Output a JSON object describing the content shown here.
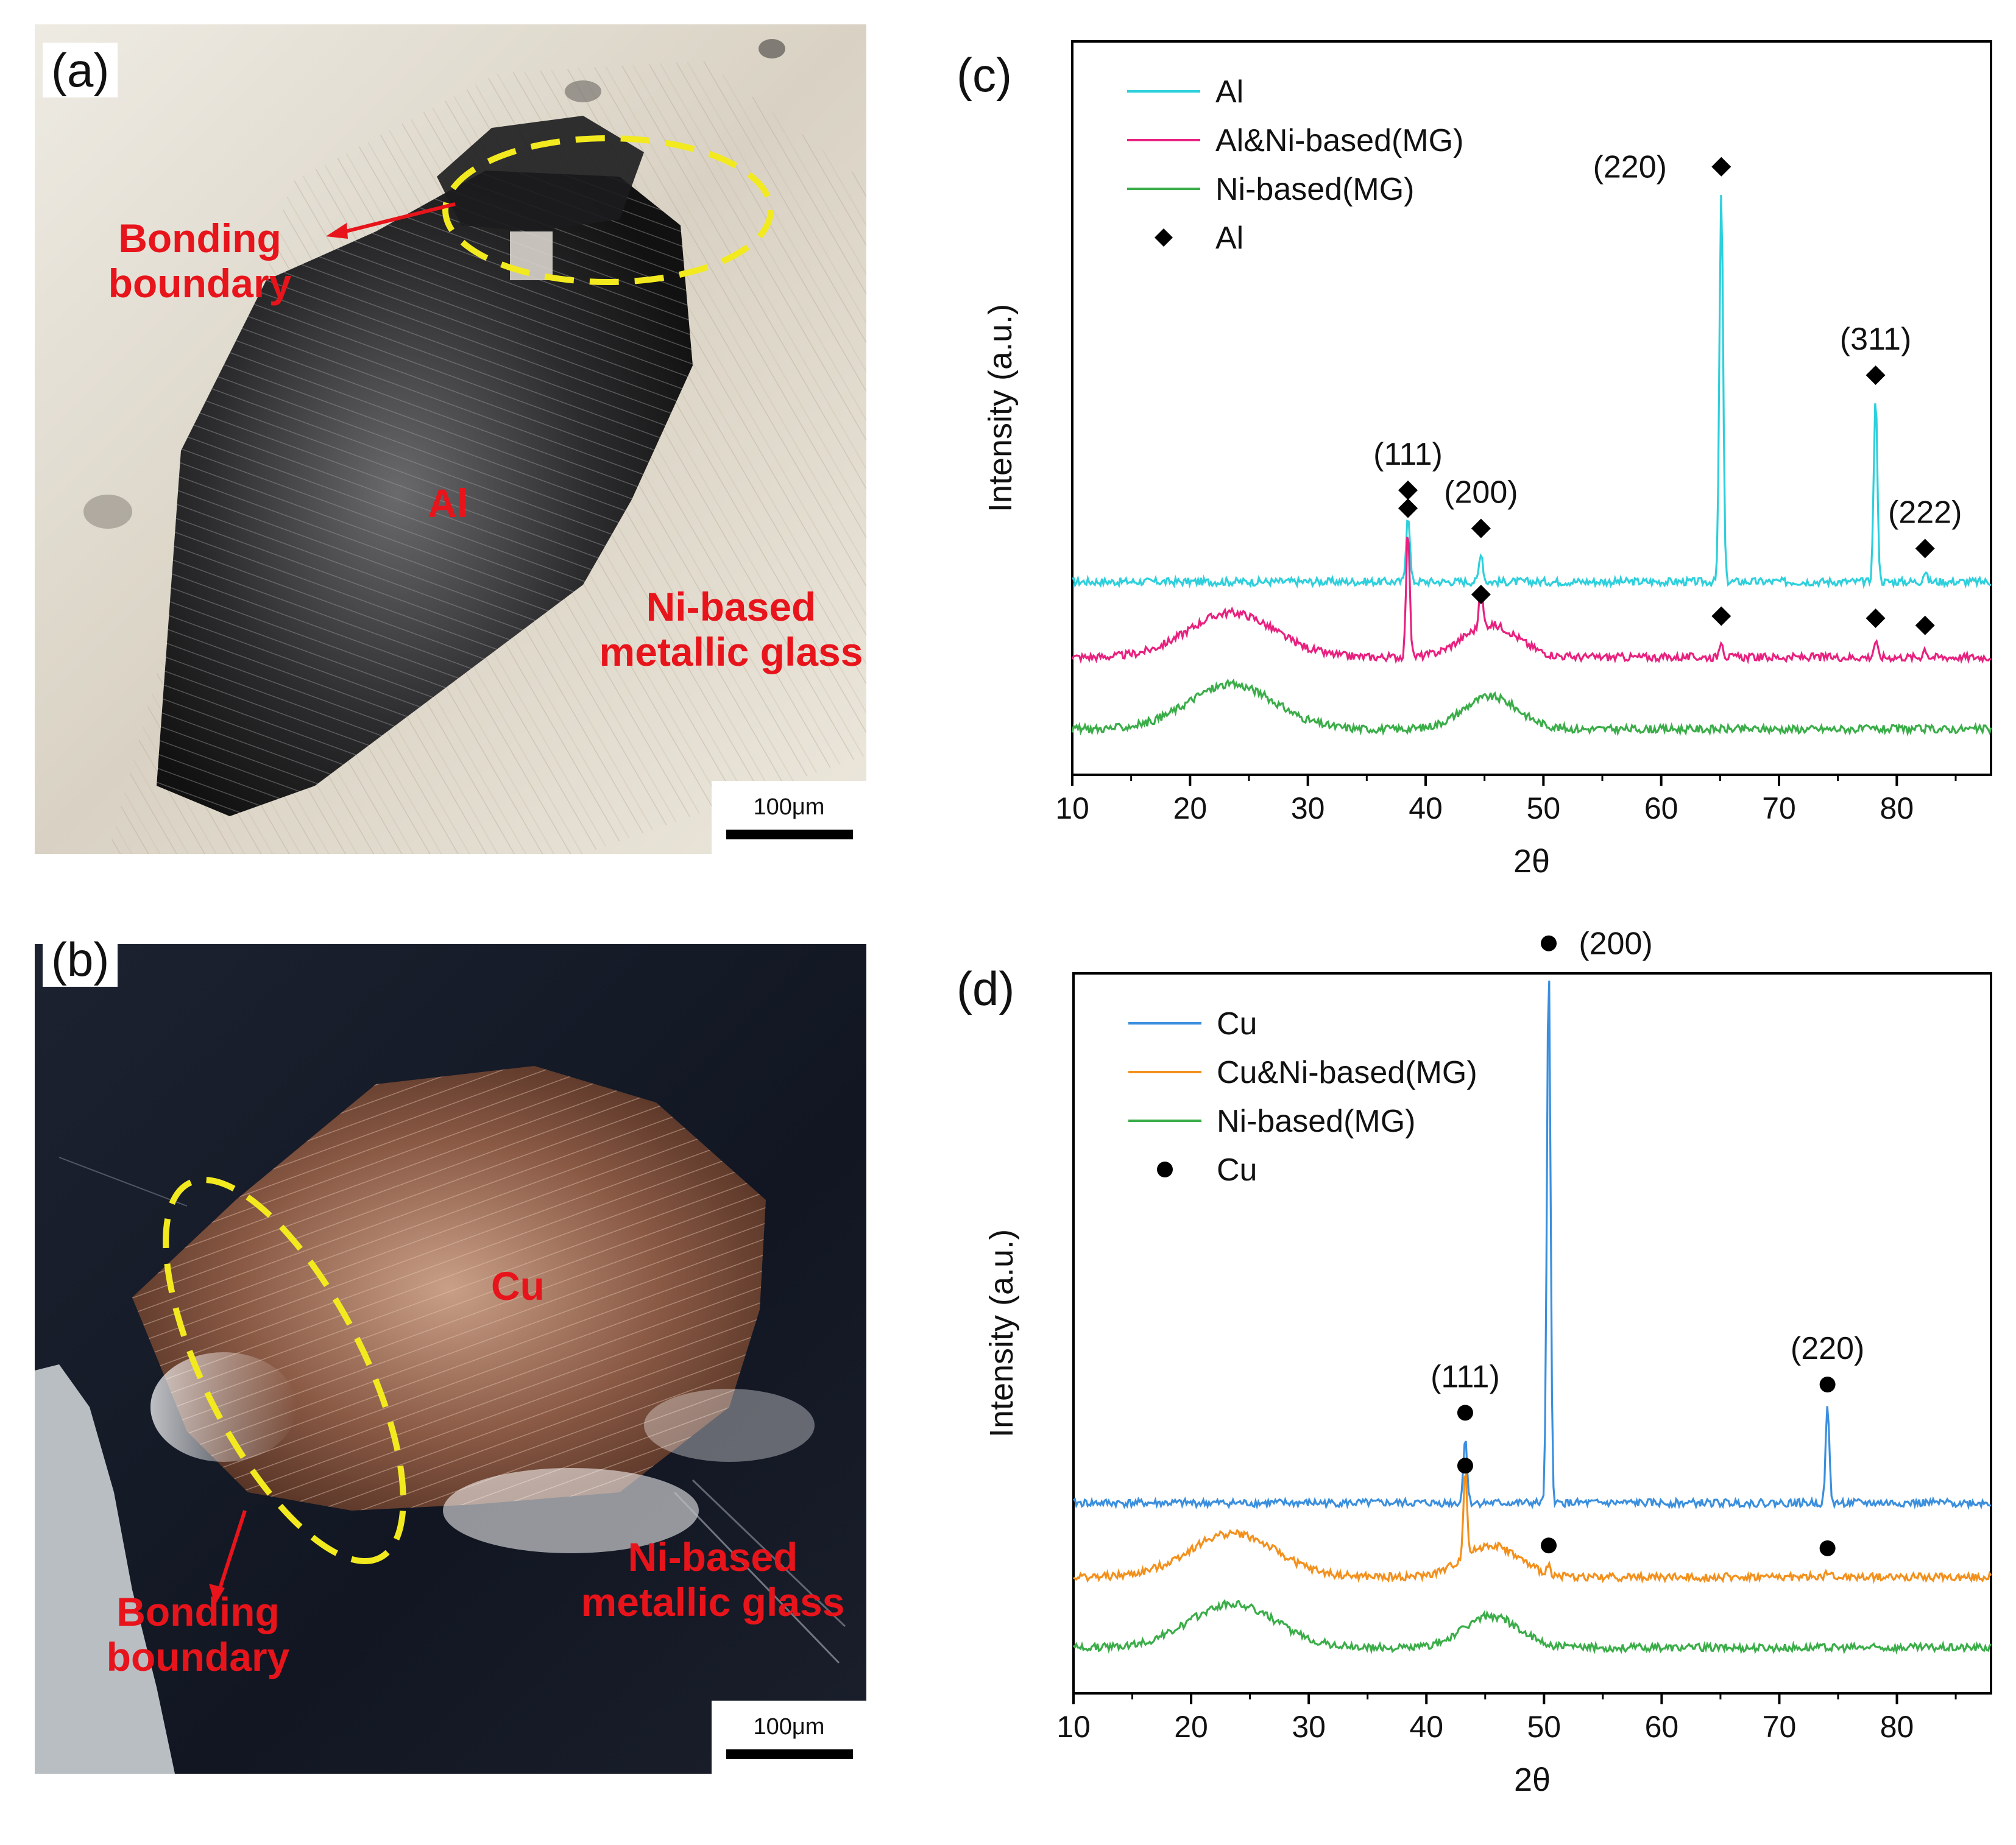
{
  "panel_a": {
    "letter": "(a)",
    "labels": {
      "bonding_line1": "Bonding",
      "bonding_line2": "boundary",
      "metal": "Al",
      "glass_line1": "Ni-based",
      "glass_line2": "metallic glass"
    },
    "scale": "100μm"
  },
  "panel_b": {
    "letter": "(b)",
    "labels": {
      "bonding_line1": "Bonding",
      "bonding_line2": "boundary",
      "metal": "Cu",
      "glass_line1": "Ni-based",
      "glass_line2": "metallic glass"
    },
    "scale": "100μm"
  },
  "colors": {
    "label_red": "#e8141b",
    "dashed_yellow": "#f2ea1f"
  },
  "chart_data": [
    {
      "type": "line",
      "panel": "(c)",
      "xlabel": "2θ",
      "ylabel": "Intensity (a.u.)",
      "xlim": [
        10,
        88
      ],
      "xticks": [
        10,
        20,
        30,
        40,
        50,
        60,
        70,
        80
      ],
      "legend_position": "top-left",
      "legend": [
        "Al",
        "Al&Ni-based(MG)",
        "Ni-based(MG)",
        "Al"
      ],
      "series": [
        {
          "name": "Al",
          "color": "#2dd0dc",
          "offset": 2.05,
          "peaks": [
            [
              38.5,
              0.95
            ],
            [
              44.7,
              0.42
            ],
            [
              65.1,
              5.45
            ],
            [
              78.2,
              2.55
            ],
            [
              82.4,
              0.14
            ]
          ]
        },
        {
          "name": "Al&Ni-based(MG)",
          "color": "#e8217f",
          "offset": 1.0,
          "amorphous": true,
          "peaks": [
            [
              38.5,
              1.75
            ],
            [
              44.7,
              0.55
            ],
            [
              65.1,
              0.25
            ],
            [
              78.2,
              0.22
            ],
            [
              82.4,
              0.12
            ]
          ]
        },
        {
          "name": "Ni-based(MG)",
          "color": "#3aad48",
          "offset": 0.0,
          "amorphous": true,
          "peaks": []
        }
      ],
      "marker": {
        "symbol": "diamond",
        "label": "Al"
      },
      "annotations": [
        {
          "x": 38.5,
          "text": "(111)"
        },
        {
          "x": 44.7,
          "text": "(200)"
        },
        {
          "x": 65.1,
          "text": "(220)"
        },
        {
          "x": 78.2,
          "text": "(311)"
        },
        {
          "x": 82.4,
          "text": "(222)"
        }
      ]
    },
    {
      "type": "line",
      "panel": "(d)",
      "xlabel": "2θ",
      "ylabel": "Intensity (a.u.)",
      "xlim": [
        10,
        88
      ],
      "xticks": [
        10,
        20,
        30,
        40,
        50,
        60,
        70,
        80
      ],
      "legend_position": "top-left",
      "legend": [
        "Cu",
        "Cu&Ni-based(MG)",
        "Ni-based(MG)",
        "Cu"
      ],
      "series": [
        {
          "name": "Cu",
          "color": "#3a8fde",
          "offset": 2.05,
          "peaks": [
            [
              43.3,
              0.95
            ],
            [
              50.4,
              7.6
            ],
            [
              74.1,
              1.35
            ]
          ]
        },
        {
          "name": "Cu&Ni-based(MG)",
          "color": "#f3901c",
          "offset": 1.0,
          "amorphous": true,
          "peaks": [
            [
              43.3,
              1.25
            ],
            [
              50.4,
              0.12
            ],
            [
              74.1,
              0.08
            ]
          ]
        },
        {
          "name": "Ni-based(MG)",
          "color": "#3aad48",
          "offset": 0.0,
          "amorphous": true,
          "peaks": []
        }
      ],
      "marker": {
        "symbol": "circle",
        "label": "Cu"
      },
      "annotations": [
        {
          "x": 43.3,
          "text": "(111)"
        },
        {
          "x": 50.4,
          "text": "(200)"
        },
        {
          "x": 74.1,
          "text": "(220)"
        }
      ]
    }
  ]
}
